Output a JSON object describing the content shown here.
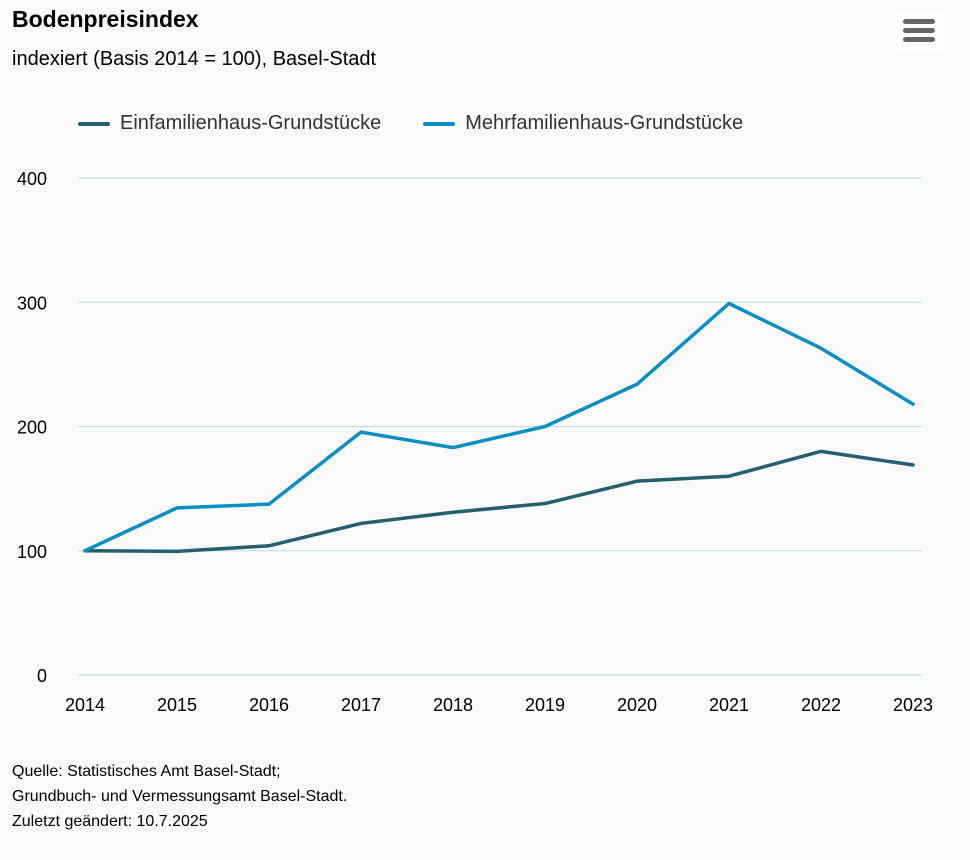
{
  "title": "Bodenpreisindex",
  "subtitle": "indexiert (Basis 2014 = 100), Basel-Stadt",
  "menu_icon": "hamburger-menu-icon",
  "source_lines": [
    "Quelle: Statistisches Amt Basel-Stadt;",
    "Grundbuch- und Vermessungsamt Basel-Stadt.",
    "Zuletzt geändert: 10.7.2025"
  ],
  "chart_data": {
    "type": "line",
    "title": "Bodenpreisindex",
    "subtitle": "indexiert (Basis 2014 = 100), Basel-Stadt",
    "categories": [
      "2014",
      "2015",
      "2016",
      "2017",
      "2018",
      "2019",
      "2020",
      "2021",
      "2022",
      "2023"
    ],
    "y_ticks": [
      "0",
      "100",
      "200",
      "300",
      "400"
    ],
    "ylim": [
      0,
      400
    ],
    "grid": true,
    "legend_position": "top",
    "series": [
      {
        "name": "Einfamilienhaus-Grundstücke",
        "color": "#24606e",
        "values": [
          100,
          99.5,
          104,
          122,
          131,
          138,
          156,
          160,
          180,
          169
        ]
      },
      {
        "name": "Mehrfamilienhaus-Grundstücke",
        "color": "#0b8ec4",
        "values": [
          100,
          134.5,
          137.5,
          195.5,
          183,
          200,
          234,
          299,
          263,
          218
        ]
      }
    ]
  }
}
